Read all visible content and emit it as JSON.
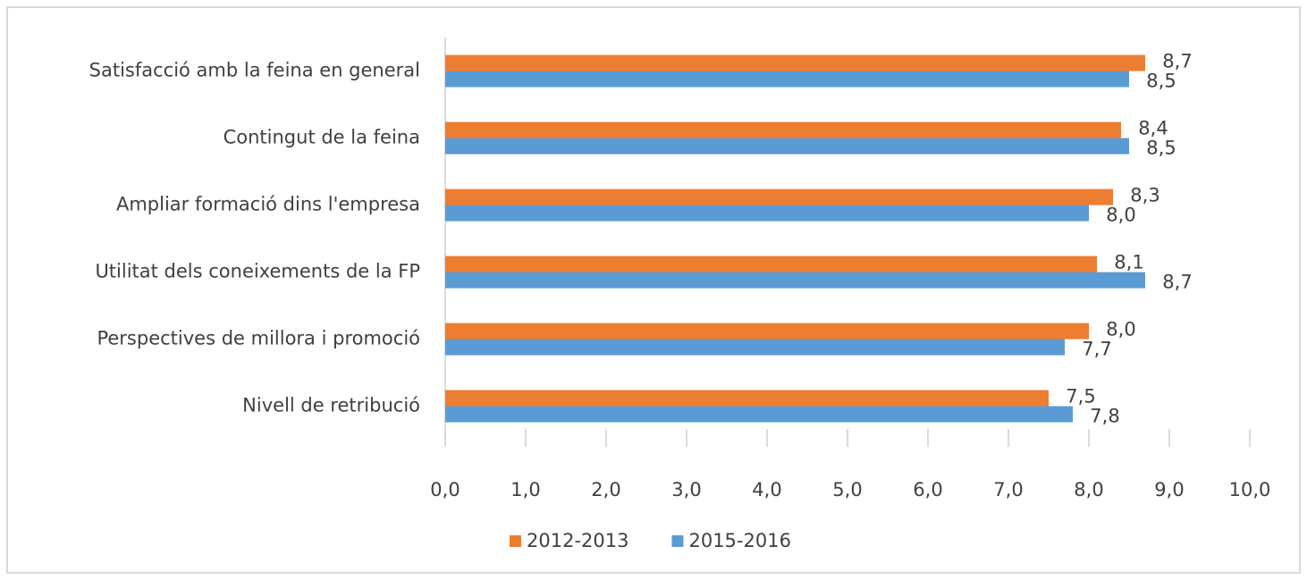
{
  "chart_data": {
    "type": "hbar",
    "categories": [
      "Satisfacció amb la feina en general",
      "Contingut de la feina",
      "Ampliar formació dins l'empresa",
      "Utilitat dels coneixements de la FP",
      "Perspectives de millora i promoció",
      "Nivell de retribució"
    ],
    "series": [
      {
        "name": "2012-2013",
        "color": "#ed7d31",
        "values": [
          8.7,
          8.4,
          8.3,
          8.1,
          8.0,
          7.5
        ],
        "value_labels": [
          "8,7",
          "8,4",
          "8,3",
          "8,1",
          "8,0",
          "7,5"
        ]
      },
      {
        "name": "2015-2016",
        "color": "#5b9bd5",
        "values": [
          8.5,
          8.5,
          8.0,
          8.7,
          7.7,
          7.8
        ],
        "value_labels": [
          "8,5",
          "8,5",
          "8,0",
          "8,7",
          "7,7",
          "7,8"
        ]
      }
    ],
    "xlim": [
      0,
      10
    ],
    "xticks": [
      {
        "value": 0,
        "label": "0,0"
      },
      {
        "value": 1,
        "label": "1,0"
      },
      {
        "value": 2,
        "label": "2,0"
      },
      {
        "value": 3,
        "label": "3,0"
      },
      {
        "value": 4,
        "label": "4,0"
      },
      {
        "value": 5,
        "label": "5,0"
      },
      {
        "value": 6,
        "label": "6,0"
      },
      {
        "value": 7,
        "label": "7,0"
      },
      {
        "value": 8,
        "label": "8,0"
      },
      {
        "value": 9,
        "label": "9,0"
      },
      {
        "value": 10,
        "label": "10,0"
      }
    ],
    "legend": "bottom"
  }
}
